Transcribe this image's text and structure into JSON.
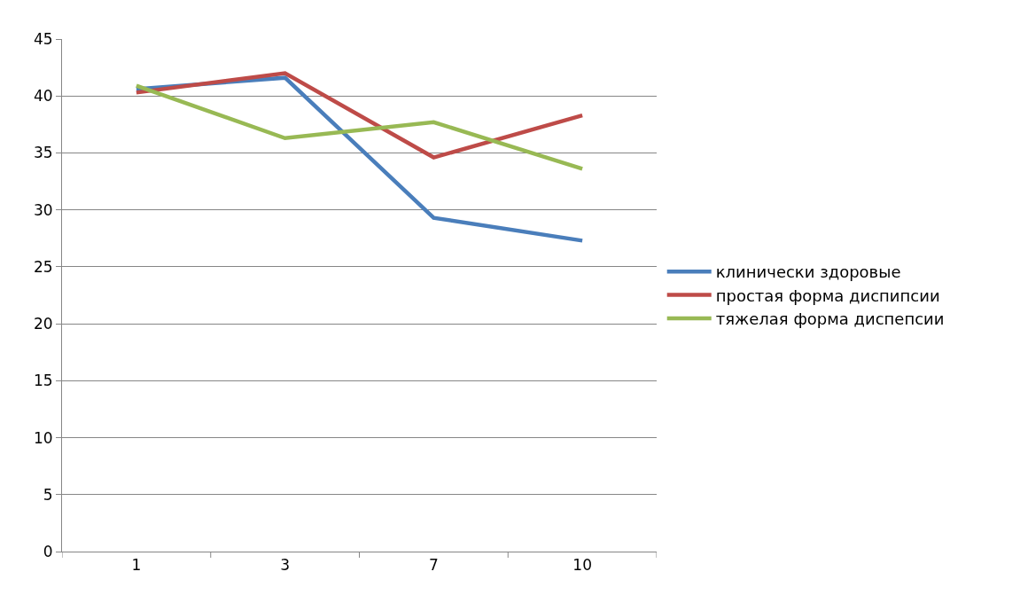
{
  "chart_data": {
    "type": "line",
    "categories": [
      "1",
      "3",
      "7",
      "10"
    ],
    "series": [
      {
        "name": "клинически здоровые",
        "color": "#4a7ebb",
        "values": [
          40.6,
          41.6,
          29.3,
          27.3
        ]
      },
      {
        "name": "простая форма диспипсии",
        "color": "#be4b48",
        "values": [
          40.3,
          42.0,
          34.6,
          38.3
        ]
      },
      {
        "name": "тяжелая форма диспепсии",
        "color": "#98b954",
        "values": [
          40.9,
          36.3,
          37.7,
          33.6
        ]
      }
    ],
    "ylim": [
      0,
      45
    ],
    "yticks": [
      0,
      5,
      10,
      15,
      20,
      25,
      30,
      35,
      40,
      45
    ],
    "grid": "y",
    "legend": "right",
    "marker": "none",
    "line_style": "solid"
  }
}
